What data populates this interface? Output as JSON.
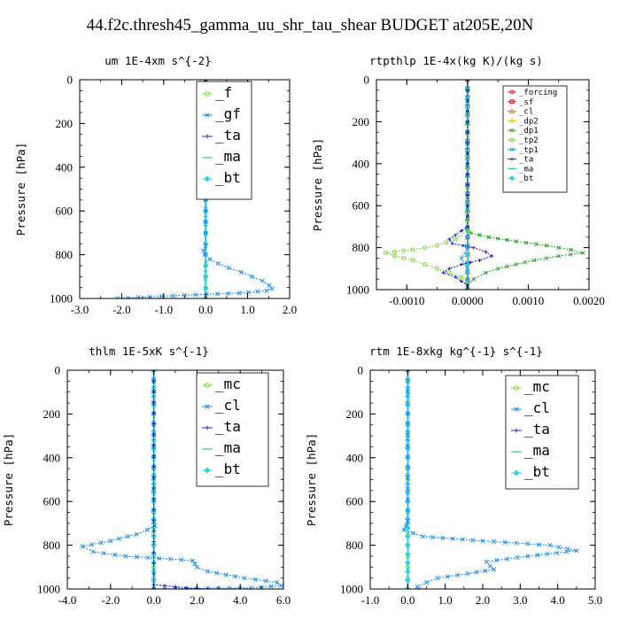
{
  "figure_title": "44.f2c.thresh45_gamma_uu_shr_tau_shear  BUDGET at205E,20N",
  "chart_data": [
    {
      "type": "line",
      "title": "um  1E-4xm s^{-2}",
      "ylabel": "Pressure [hPa]",
      "xlim": [
        -3.0,
        2.0
      ],
      "ylim": [
        1000,
        0
      ],
      "xticks": [
        -3.0,
        -2.0,
        -1.0,
        0.0,
        1.0,
        2.0
      ],
      "xtick_labels": [
        "-3.0",
        "-2.0",
        "-1.0",
        "0.0",
        "1.0",
        "2.0"
      ],
      "yticks": [
        0,
        200,
        400,
        600,
        800,
        1000
      ],
      "ytick_labels": [
        "0",
        "200",
        "400",
        "600",
        "800",
        "1000"
      ],
      "legend_position": "top-right",
      "legend_style": "big",
      "series": [
        {
          "name": "_f",
          "color": "#7cdc3c",
          "marker": "circle",
          "y": [
            0,
            100,
            200,
            300,
            400,
            500,
            600,
            700,
            750,
            800,
            850,
            900,
            950,
            1000
          ],
          "x": [
            0,
            0,
            0,
            0,
            0,
            0,
            0,
            0,
            0,
            0,
            0,
            0,
            0,
            0
          ]
        },
        {
          "name": "_gf",
          "color": "#1f8ff0",
          "marker": "cross",
          "y": [
            0,
            500,
            700,
            760,
            780,
            800,
            820,
            840,
            860,
            880,
            900,
            920,
            940,
            955,
            965,
            975,
            985,
            995,
            1000
          ],
          "x": [
            0,
            0,
            0,
            0,
            -0.05,
            -0.02,
            0.1,
            0.3,
            0.55,
            0.85,
            1.1,
            1.35,
            1.52,
            1.58,
            1.45,
            0.8,
            -0.5,
            -1.6,
            -2.1
          ]
        },
        {
          "name": "_ta",
          "color": "#2020d0",
          "marker": "plus",
          "y": [
            0,
            500,
            1000
          ],
          "x": [
            0,
            0,
            0
          ]
        },
        {
          "name": "_ma",
          "color": "#20c0a0",
          "marker": "dash",
          "y": [
            0,
            500,
            1000
          ],
          "x": [
            0,
            0,
            0
          ]
        },
        {
          "name": "_bt",
          "color": "#2ed0e8",
          "marker": "diamond",
          "y": [
            0,
            100,
            200,
            300,
            400,
            500,
            600,
            700,
            800,
            900,
            1000
          ],
          "x": [
            0,
            0,
            0,
            0,
            0,
            0,
            0,
            0,
            0,
            0,
            0
          ]
        }
      ]
    },
    {
      "type": "line",
      "title": "rtpthlp  1E-4x(kg K)/(kg s)",
      "ylabel": "Pressure [hPa]",
      "xlim": [
        -0.0015,
        0.002
      ],
      "ylim": [
        1000,
        0
      ],
      "xticks": [
        -0.001,
        0.0,
        0.001,
        0.002
      ],
      "xtick_labels": [
        "-0.0010",
        "0.0000",
        "0.0010",
        "0.0020"
      ],
      "yticks": [
        0,
        200,
        400,
        600,
        800,
        1000
      ],
      "ytick_labels": [
        "0",
        "200",
        "400",
        "600",
        "800",
        "1000"
      ],
      "legend_position": "top-right",
      "legend_style": "small",
      "series": [
        {
          "name": "_forcing",
          "color": "#e02020",
          "marker": "circle",
          "y": [
            0,
            1000
          ],
          "x": [
            0,
            0
          ]
        },
        {
          "name": "_sf",
          "color": "#c01010",
          "marker": "square",
          "y": [
            0,
            1000
          ],
          "x": [
            0,
            0
          ]
        },
        {
          "name": "_cl",
          "color": "#e08020",
          "marker": "triangle",
          "y": [
            0,
            1000
          ],
          "x": [
            0,
            0
          ]
        },
        {
          "name": "_dp2",
          "color": "#e8c020",
          "marker": "circle",
          "y": [
            0,
            1000
          ],
          "x": [
            0,
            0
          ]
        },
        {
          "name": "_dp1",
          "color": "#30a030",
          "marker": "cross",
          "y": [
            0,
            710,
            730,
            750,
            770,
            790,
            810,
            825,
            840,
            860,
            880,
            900,
            920,
            950,
            980,
            1000
          ],
          "x": [
            0,
            0,
            5e-05,
            0.00035,
            0.0008,
            0.0013,
            0.0017,
            0.0019,
            0.0015,
            0.0011,
            0.0008,
            0.0005,
            0.0003,
            0.0001,
            0,
            0
          ]
        },
        {
          "name": "_tp2",
          "color": "#7cdc3c",
          "marker": "circle",
          "y": [
            0,
            720,
            760,
            790,
            810,
            825,
            840,
            860,
            880,
            900,
            920,
            940,
            960,
            1000
          ],
          "x": [
            0,
            0,
            -0.0002,
            -0.0005,
            -0.0009,
            -0.00135,
            -0.0012,
            -0.0009,
            -0.0007,
            -0.0005,
            -0.0003,
            -0.0001,
            0,
            0
          ]
        },
        {
          "name": "_tp1",
          "color": "#1f8ff0",
          "marker": "cross",
          "y": [
            0,
            800,
            850,
            900,
            1000
          ],
          "x": [
            0,
            0,
            -0.0001,
            0,
            0
          ]
        },
        {
          "name": "_ta",
          "color": "#2020d0",
          "marker": "plus",
          "y": [
            0,
            700,
            720,
            740,
            760,
            780,
            800,
            820,
            840,
            860,
            880,
            900,
            920,
            940,
            960,
            980,
            1000
          ],
          "x": [
            0,
            0,
            -0.0001,
            -0.0002,
            -0.0003,
            -0.00025,
            0.0001,
            0.0003,
            0.0004,
            0.0002,
            -0.0001,
            -0.0003,
            -0.0004,
            -0.0002,
            -0.0001,
            0,
            0
          ]
        },
        {
          "name": "_ma",
          "color": "#20c0a0",
          "marker": "dash",
          "y": [
            0,
            1000
          ],
          "x": [
            0,
            0
          ]
        },
        {
          "name": "_bt",
          "color": "#2ed0e8",
          "marker": "diamond",
          "y": [
            0,
            1000
          ],
          "x": [
            0,
            0
          ]
        }
      ]
    },
    {
      "type": "line",
      "title": "thlm  1E-5xK s^{-1}",
      "ylabel": "Pressure [hPa]",
      "xlim": [
        -4.0,
        6.0
      ],
      "ylim": [
        1000,
        0
      ],
      "xticks": [
        -4.0,
        -2.0,
        0.0,
        2.0,
        4.0,
        6.0
      ],
      "xtick_labels": [
        "-4.0",
        "-2.0",
        "0.0",
        "2.0",
        "4.0",
        "6.0"
      ],
      "yticks": [
        0,
        200,
        400,
        600,
        800,
        1000
      ],
      "ytick_labels": [
        "0",
        "200",
        "400",
        "600",
        "800",
        "1000"
      ],
      "legend_position": "top-right",
      "legend_style": "big",
      "series": [
        {
          "name": "_mc",
          "color": "#7cdc3c",
          "marker": "circle",
          "y": [
            0,
            100,
            200,
            300,
            400,
            500,
            600,
            700,
            800,
            900,
            1000
          ],
          "x": [
            0,
            0,
            0,
            0,
            0,
            0,
            0,
            0,
            0,
            0,
            0
          ]
        },
        {
          "name": "_cl",
          "color": "#1f8ff0",
          "marker": "cross",
          "y": [
            0,
            690,
            710,
            730,
            750,
            780,
            805,
            830,
            850,
            870,
            885,
            900,
            920,
            950,
            970,
            985,
            995,
            1000
          ],
          "x": [
            0,
            0,
            0.05,
            -0.3,
            -0.8,
            -2.0,
            -3.3,
            -2.8,
            -1.3,
            1.8,
            1.9,
            2.0,
            2.5,
            4.2,
            5.7,
            5.9,
            4.5,
            0
          ]
        },
        {
          "name": "_ta",
          "color": "#2020d0",
          "marker": "plus",
          "y": [
            0,
            980,
            995,
            1000
          ],
          "x": [
            0,
            0,
            1.5,
            2.5
          ]
        },
        {
          "name": "_ma",
          "color": "#20c0a0",
          "marker": "dash",
          "y": [
            0,
            1000
          ],
          "x": [
            0,
            0
          ]
        },
        {
          "name": "_bt",
          "color": "#2ed0e8",
          "marker": "diamond",
          "y": [
            0,
            1000
          ],
          "x": [
            0,
            0
          ]
        }
      ]
    },
    {
      "type": "line",
      "title": "rtm  1E-8xkg kg^{-1} s^{-1}",
      "ylabel": "Pressure [hPa]",
      "xlim": [
        -1.0,
        5.0
      ],
      "ylim": [
        1000,
        0
      ],
      "xticks": [
        -1.0,
        0.0,
        1.0,
        2.0,
        3.0,
        4.0,
        5.0
      ],
      "xtick_labels": [
        "-1.0",
        "0.0",
        "1.0",
        "2.0",
        "3.0",
        "4.0",
        "5.0"
      ],
      "yticks": [
        0,
        200,
        400,
        600,
        800,
        1000
      ],
      "ytick_labels": [
        "0",
        "200",
        "400",
        "600",
        "800",
        "1000"
      ],
      "legend_position": "top-right",
      "legend_style": "big",
      "series": [
        {
          "name": "_mc",
          "color": "#7cdc3c",
          "marker": "circle",
          "y": [
            0,
            100,
            200,
            300,
            400,
            500,
            600,
            700,
            800,
            900,
            1000
          ],
          "x": [
            0,
            0,
            0,
            0,
            0,
            0,
            0,
            0,
            0,
            0,
            0
          ]
        },
        {
          "name": "_cl",
          "color": "#1f8ff0",
          "marker": "cross",
          "y": [
            0,
            690,
            710,
            730,
            760,
            780,
            800,
            825,
            850,
            875,
            895,
            910,
            930,
            950,
            970,
            990,
            1000
          ],
          "x": [
            0,
            0,
            -0.05,
            -0.1,
            0.4,
            2.0,
            3.8,
            4.5,
            3.2,
            2.1,
            2.2,
            2.3,
            1.6,
            0.8,
            0.5,
            0.25,
            0.3
          ]
        },
        {
          "name": "_ta",
          "color": "#2020d0",
          "marker": "plus",
          "y": [
            0,
            1000
          ],
          "x": [
            0,
            0
          ]
        },
        {
          "name": "_ma",
          "color": "#20c0a0",
          "marker": "dash",
          "y": [
            0,
            1000
          ],
          "x": [
            0,
            0
          ]
        },
        {
          "name": "_bt",
          "color": "#2ed0e8",
          "marker": "diamond",
          "y": [
            0,
            1000
          ],
          "x": [
            0,
            0
          ]
        }
      ]
    }
  ]
}
